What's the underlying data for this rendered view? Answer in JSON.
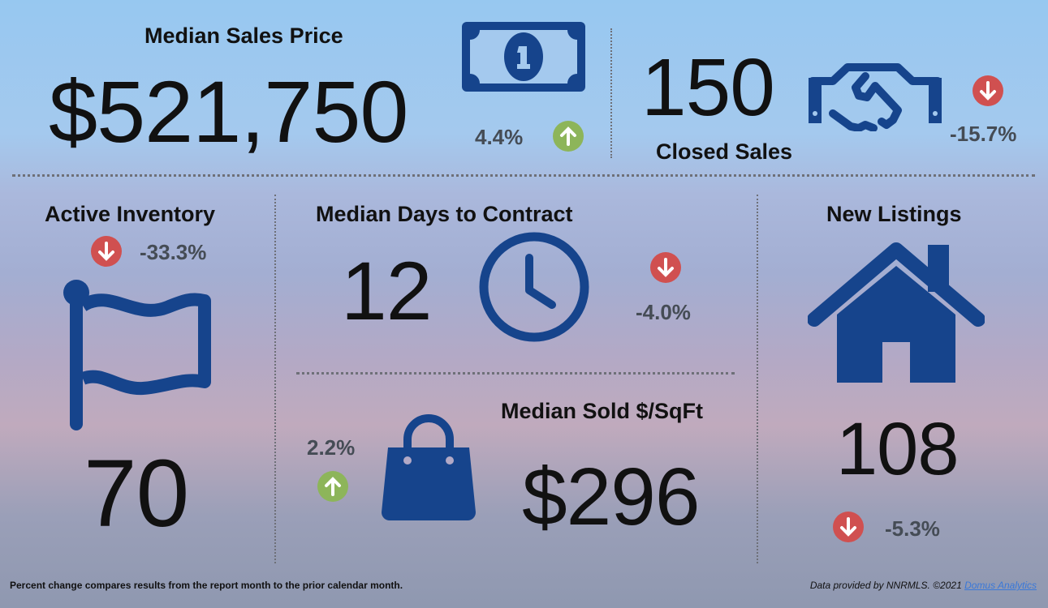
{
  "colors": {
    "icon_blue": "#16448c",
    "down_red": "#d05050",
    "up_green": "#8db55a",
    "pct_text": "#454c55"
  },
  "median_sales_price": {
    "title": "Median Sales Price",
    "value": "$521,750",
    "change": "4.4%",
    "direction": "up",
    "icon": "dollar-bill-icon"
  },
  "closed_sales": {
    "title": "Closed Sales",
    "value": "150",
    "change": "-15.7%",
    "direction": "down",
    "icon": "handshake-icon"
  },
  "active_inventory": {
    "title": "Active Inventory",
    "value": "70",
    "change": "-33.3%",
    "direction": "down",
    "icon": "flag-icon"
  },
  "median_days_to_contract": {
    "title": "Median Days to Contract",
    "value": "12",
    "change": "-4.0%",
    "direction": "down",
    "icon": "clock-icon"
  },
  "median_sold_sqft": {
    "title": "Median Sold $/SqFt",
    "value": "$296",
    "change": "2.2%",
    "direction": "up",
    "icon": "shopping-bag-icon"
  },
  "new_listings": {
    "title": "New Listings",
    "value": "108",
    "change": "-5.3%",
    "direction": "down",
    "icon": "house-icon"
  },
  "footer": {
    "note": "Percent change compares results from the report month to the prior calendar month.",
    "credit": "Data provided by NNRMLS. ©2021 ",
    "credit_link": "Domus Analytics"
  }
}
